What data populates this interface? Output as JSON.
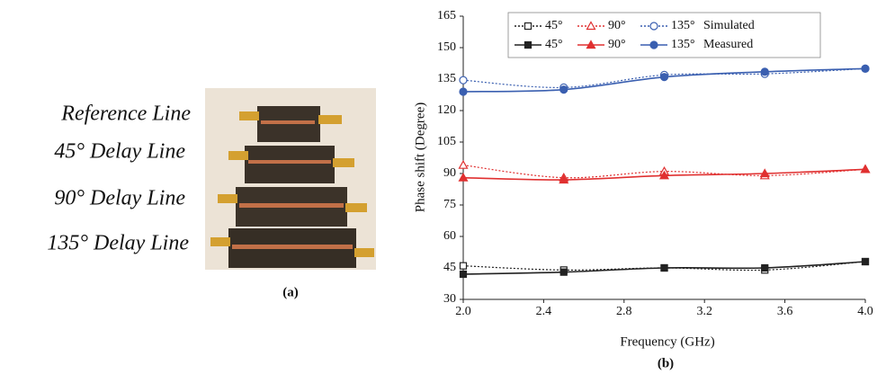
{
  "figure": {
    "photo_labels": [
      "Reference Line",
      "45° Delay Line",
      "90° Delay Line",
      "135° Delay Line"
    ],
    "caption_a": "(a)",
    "caption_b": "(b)"
  },
  "chart_data": {
    "type": "line",
    "x_label": "Frequency (GHz)",
    "y_label": "Phase shift (Degree)",
    "x": [
      2.0,
      2.5,
      3.0,
      3.5,
      4.0
    ],
    "xlim": [
      2.0,
      4.0
    ],
    "xticks": [
      {
        "value": 2,
        "label": "2.0"
      },
      2.4,
      2.8,
      3.2,
      3.6,
      {
        "value": 4,
        "label": "4.0"
      }
    ],
    "ylim": [
      30,
      165
    ],
    "yticks": [
      30,
      45,
      60,
      75,
      90,
      105,
      120,
      135,
      150,
      165
    ],
    "series": [
      {
        "name": "45°",
        "group": "Simulated",
        "color": "#222222",
        "marker": "square",
        "filled": false,
        "dashed": true,
        "values": [
          46,
          44,
          45,
          44,
          48
        ]
      },
      {
        "name": "90°",
        "group": "Simulated",
        "color": "#e03030",
        "marker": "triangle",
        "filled": false,
        "dashed": true,
        "values": [
          94,
          88,
          91,
          89,
          92
        ]
      },
      {
        "name": "135°",
        "group": "Simulated",
        "color": "#3a5fb0",
        "marker": "circle",
        "filled": false,
        "dashed": true,
        "values": [
          134.5,
          131,
          137,
          137.5,
          140
        ]
      },
      {
        "name": "45°",
        "group": "Measured",
        "color": "#222222",
        "marker": "square",
        "filled": true,
        "dashed": false,
        "values": [
          42,
          43,
          45,
          45,
          48
        ]
      },
      {
        "name": "90°",
        "group": "Measured",
        "color": "#e03030",
        "marker": "triangle",
        "filled": true,
        "dashed": false,
        "values": [
          88,
          87,
          89,
          90,
          92
        ]
      },
      {
        "name": "135°",
        "group": "Measured",
        "color": "#3a5fb0",
        "marker": "circle",
        "filled": true,
        "dashed": false,
        "values": [
          129,
          130,
          136,
          138.5,
          140
        ]
      }
    ]
  }
}
